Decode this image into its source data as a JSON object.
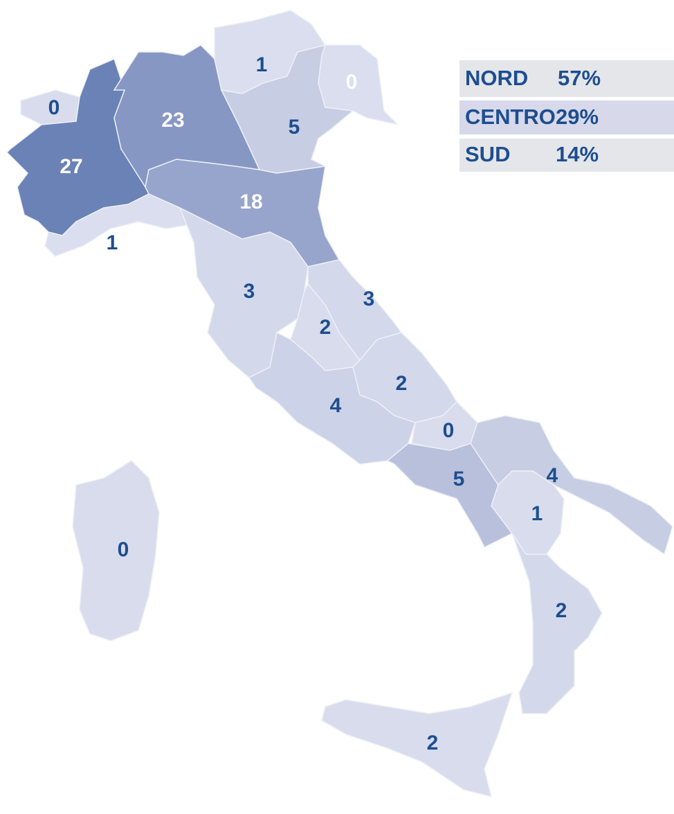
{
  "map": {
    "regions": [
      {
        "value": 0,
        "color": "#d8dcec",
        "text_color": "#1d4e8f"
      },
      {
        "value": 27,
        "color": "#6a82b5",
        "text_color": "#ffffff"
      },
      {
        "value": 23,
        "color": "#8797c4",
        "text_color": "#ffffff"
      },
      {
        "value": 1,
        "color": "#dadeee",
        "text_color": "#1d4e8f"
      },
      {
        "value": 0,
        "color": "#dadeee",
        "text_color": "#ffffff"
      },
      {
        "value": 5,
        "color": "#c7cde3",
        "text_color": "#1d4e8f"
      },
      {
        "value": 18,
        "color": "#97a5cc",
        "text_color": "#ffffff"
      },
      {
        "value": 1,
        "color": "#dadeee",
        "text_color": "#1d4e8f"
      },
      {
        "value": 3,
        "color": "#d3d8ea",
        "text_color": "#1d4e8f"
      },
      {
        "value": 3,
        "color": "#d3d8ea",
        "text_color": "#1d4e8f"
      },
      {
        "value": 2,
        "color": "#d8dcec",
        "text_color": "#1d4e8f"
      },
      {
        "value": 2,
        "color": "#d3d8ea",
        "text_color": "#1d4e8f"
      },
      {
        "value": 4,
        "color": "#ccd2e7",
        "text_color": "#1d4e8f"
      },
      {
        "value": 0,
        "color": "#d8dcec",
        "text_color": "#1d4e8f"
      },
      {
        "value": 5,
        "color": "#b8c0dc",
        "text_color": "#1d4e8f"
      },
      {
        "value": 4,
        "color": "#c7cde3",
        "text_color": "#1d4e8f"
      },
      {
        "value": 1,
        "color": "#d8dcec",
        "text_color": "#1d4e8f"
      },
      {
        "value": 0,
        "color": "#d8dcec",
        "text_color": "#1d4e8f"
      },
      {
        "value": 2,
        "color": "#d3d8ea",
        "text_color": "#1d4e8f"
      },
      {
        "value": 2,
        "color": "#d8dcec",
        "text_color": "#1d4e8f"
      }
    ]
  },
  "legend": {
    "rows": [
      [
        "NORD",
        "57%"
      ],
      [
        "CENTRO",
        "29%"
      ],
      [
        "SUD",
        "14%"
      ]
    ]
  }
}
